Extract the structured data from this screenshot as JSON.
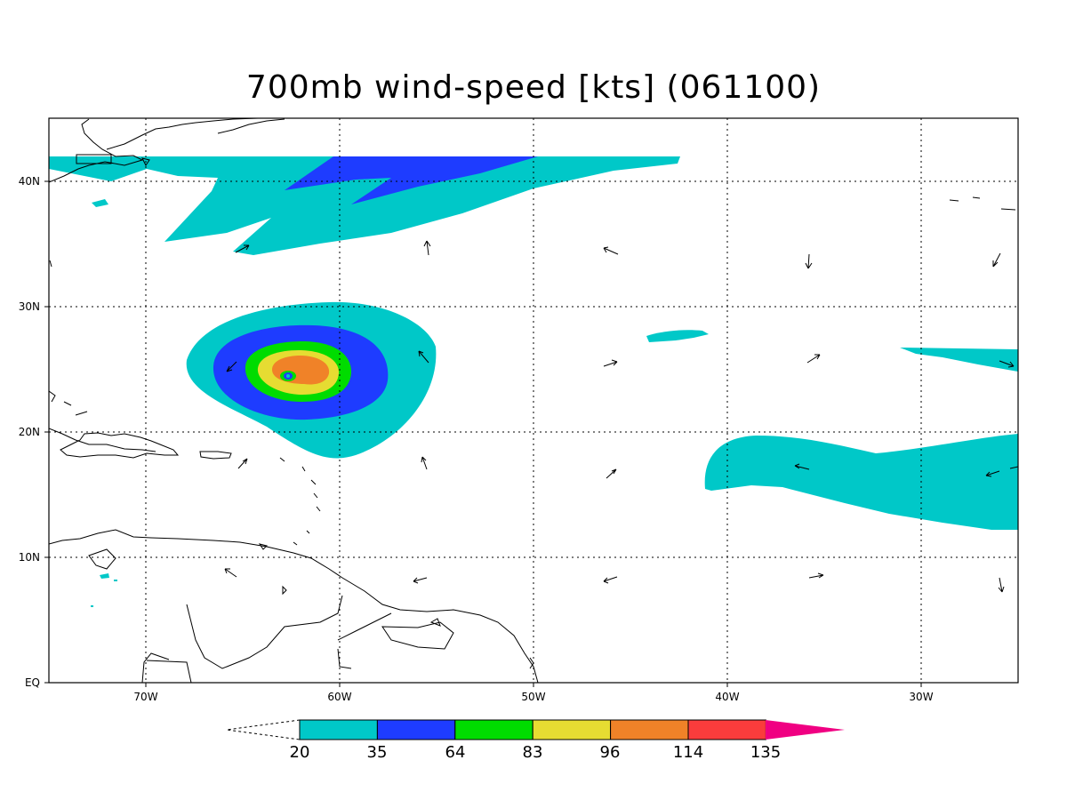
{
  "title": "700mb wind-speed [kts] (061100)",
  "axes": {
    "x_ticks": [
      "70W",
      "60W",
      "50W",
      "40W",
      "30W"
    ],
    "y_ticks": [
      "EQ",
      "10N",
      "20N",
      "30N",
      "40N"
    ]
  },
  "colorbar": {
    "labels": [
      "20",
      "35",
      "64",
      "83",
      "96",
      "114",
      "135"
    ],
    "colors": [
      "#00c8c8",
      "#1e3cff",
      "#00dc00",
      "#e6dc32",
      "#f08228",
      "#fa3c3c",
      "#f00082"
    ]
  },
  "colors": {
    "cyan": "#00c8c8",
    "blue": "#1e3cff",
    "green": "#00dc00",
    "yellow": "#e6dc32",
    "orange": "#f08228",
    "red": "#fa3c3c",
    "magenta": "#f00082"
  }
}
